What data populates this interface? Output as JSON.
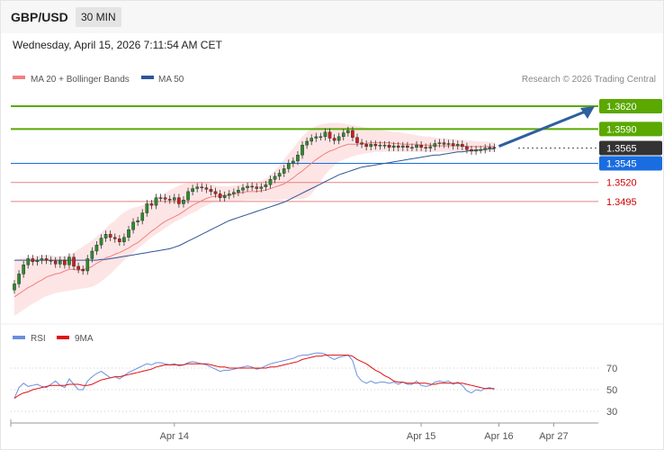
{
  "header": {
    "pair": "GBP/USD",
    "timeframe": "30 MIN"
  },
  "datetime": "Wednesday, April 15, 2026 7:11:54 AM CET",
  "credit": "Research © 2026 Trading Central",
  "colors": {
    "ma20": "#f08080",
    "ma50": "#2f5597",
    "band_fill": "#fde0e0",
    "resistance": "#5aa800",
    "support": "#1a6de0",
    "support_dark": "#d20000",
    "current": "#333333",
    "candle_up": "#2e8b2e",
    "candle_down": "#cc1f1f",
    "rsi": "#6a8fdc",
    "rsi_ma": "#e01010",
    "arrow": "#2e5f9e"
  },
  "chart_data": [
    {
      "type": "candlestick",
      "title": "",
      "legend": [
        "MA 20 + Bollinger Bands",
        "MA 50"
      ],
      "price_levels": [
        {
          "value": "1.3620",
          "role": "resistance"
        },
        {
          "value": "1.3590",
          "role": "resistance"
        },
        {
          "value": "1.3565",
          "role": "current"
        },
        {
          "value": "1.3545",
          "role": "support"
        },
        {
          "value": "1.3520",
          "role": "support"
        },
        {
          "value": "1.3495",
          "role": "support"
        }
      ],
      "ylim": [
        1.3345,
        1.364
      ],
      "x_ticks": [
        {
          "label": "Apr 14",
          "index": 35
        },
        {
          "label": "Apr 15",
          "index": 89
        },
        {
          "label": "Apr 16",
          "index": 106
        },
        {
          "label": "Apr 27",
          "index": 118
        }
      ],
      "n_slots": 124,
      "closes": [
        1.3387,
        1.34,
        1.3412,
        1.342,
        1.3416,
        1.3418,
        1.342,
        1.3418,
        1.3417,
        1.3413,
        1.3418,
        1.3412,
        1.3422,
        1.341,
        1.3406,
        1.3404,
        1.342,
        1.343,
        1.3438,
        1.3447,
        1.3452,
        1.3448,
        1.3446,
        1.3442,
        1.3448,
        1.3458,
        1.3468,
        1.347,
        1.348,
        1.3492,
        1.349,
        1.35,
        1.35,
        1.3498,
        1.3497,
        1.35,
        1.3492,
        1.3497,
        1.3508,
        1.3512,
        1.3514,
        1.3513,
        1.3511,
        1.3508,
        1.3505,
        1.35,
        1.3503,
        1.3505,
        1.3507,
        1.351,
        1.3513,
        1.3515,
        1.3514,
        1.3512,
        1.3514,
        1.3517,
        1.3524,
        1.3528,
        1.3532,
        1.3538,
        1.3545,
        1.3548,
        1.3556,
        1.3569,
        1.3574,
        1.3578,
        1.358,
        1.358,
        1.3586,
        1.3578,
        1.3575,
        1.358,
        1.3585,
        1.3588,
        1.3579,
        1.3572,
        1.357,
        1.3567,
        1.357,
        1.3568,
        1.3569,
        1.3569,
        1.3566,
        1.3568,
        1.3566,
        1.3568,
        1.3566,
        1.3566,
        1.3569,
        1.3566,
        1.3565,
        1.3567,
        1.3571,
        1.3572,
        1.357,
        1.3571,
        1.3568,
        1.357,
        1.3567,
        1.3563,
        1.3561,
        1.3563,
        1.3563,
        1.3565,
        1.3566,
        1.3565
      ],
      "ma20": [
        1.337,
        1.3374,
        1.3378,
        1.3382,
        1.3385,
        1.3389,
        1.3392,
        1.3396,
        1.3398,
        1.34,
        1.3401,
        1.3404,
        1.3406,
        1.3406,
        1.3405,
        1.3406,
        1.3407,
        1.341,
        1.3414,
        1.3417,
        1.3421,
        1.3423,
        1.3426,
        1.3428,
        1.3431,
        1.3434,
        1.3438,
        1.3441,
        1.3446,
        1.3451,
        1.3456,
        1.346,
        1.3465,
        1.3469,
        1.3472,
        1.3475,
        1.3478,
        1.3482,
        1.3486,
        1.349,
        1.3493,
        1.3496,
        1.3499,
        1.3501,
        1.3502,
        1.3502,
        1.3503,
        1.3503,
        1.3505,
        1.3506,
        1.3507,
        1.3508,
        1.3508,
        1.3508,
        1.3509,
        1.351,
        1.3512,
        1.3514,
        1.3516,
        1.3518,
        1.3522,
        1.3526,
        1.3531,
        1.3535,
        1.354,
        1.3545,
        1.355,
        1.3554,
        1.3558,
        1.3561,
        1.3563,
        1.3566,
        1.3568,
        1.357,
        1.357,
        1.357,
        1.3571,
        1.3571,
        1.3572,
        1.3572,
        1.3572,
        1.3572,
        1.3572,
        1.3571,
        1.3571,
        1.357,
        1.357,
        1.357,
        1.357,
        1.3569,
        1.3569,
        1.3569,
        1.3568,
        1.3568,
        1.3568,
        1.3568,
        1.3568,
        1.3568,
        1.3568,
        1.3567,
        1.3567,
        1.3567,
        1.3567,
        1.3567,
        1.3567,
        1.3567
      ],
      "bb_upper": [
        1.3418,
        1.342,
        1.3421,
        1.3422,
        1.3423,
        1.3424,
        1.3425,
        1.3425,
        1.3425,
        1.3423,
        1.3423,
        1.3424,
        1.3425,
        1.3428,
        1.3432,
        1.3436,
        1.344,
        1.3444,
        1.3449,
        1.3454,
        1.346,
        1.3466,
        1.347,
        1.3476,
        1.3481,
        1.3484,
        1.3487,
        1.3488,
        1.349,
        1.3493,
        1.3496,
        1.35,
        1.3503,
        1.3506,
        1.351,
        1.3513,
        1.3516,
        1.3518,
        1.3519,
        1.352,
        1.352,
        1.3521,
        1.352,
        1.3518,
        1.3516,
        1.3515,
        1.3515,
        1.3515,
        1.3516,
        1.3517,
        1.3518,
        1.3518,
        1.3519,
        1.352,
        1.3522,
        1.3525,
        1.353,
        1.3536,
        1.3542,
        1.355,
        1.3558,
        1.3565,
        1.3573,
        1.358,
        1.3586,
        1.3591,
        1.3594,
        1.3596,
        1.3597,
        1.3598,
        1.3598,
        1.3598,
        1.3597,
        1.3596,
        1.3595,
        1.3594,
        1.3593,
        1.3592,
        1.3591,
        1.359,
        1.3589,
        1.3588,
        1.3587,
        1.3586,
        1.3586,
        1.3585,
        1.3584,
        1.3583,
        1.3582,
        1.3581,
        1.358,
        1.358,
        1.3579,
        1.3578,
        1.3578,
        1.3577,
        1.3577,
        1.3576,
        1.3576,
        1.3575,
        1.3575,
        1.3574,
        1.3574,
        1.3574,
        1.3573,
        1.3573
      ],
      "bb_lower": [
        1.3345,
        1.3349,
        1.3353,
        1.3357,
        1.3361,
        1.3364,
        1.3368,
        1.3371,
        1.3373,
        1.3375,
        1.3376,
        1.3377,
        1.3378,
        1.3379,
        1.338,
        1.3381,
        1.3382,
        1.3383,
        1.3386,
        1.339,
        1.3395,
        1.34,
        1.3406,
        1.3412,
        1.3418,
        1.3423,
        1.3428,
        1.3433,
        1.3438,
        1.3443,
        1.3448,
        1.3452,
        1.3456,
        1.346,
        1.3464,
        1.3468,
        1.3471,
        1.3474,
        1.3477,
        1.348,
        1.3483,
        1.3487,
        1.349,
        1.3493,
        1.3495,
        1.3496,
        1.3496,
        1.3496,
        1.3496,
        1.3496,
        1.3496,
        1.3497,
        1.3497,
        1.3497,
        1.3497,
        1.3497,
        1.3497,
        1.3497,
        1.3497,
        1.3498,
        1.3498,
        1.3498,
        1.3498,
        1.3498,
        1.35,
        1.3505,
        1.3512,
        1.3521,
        1.353,
        1.3537,
        1.3542,
        1.3547,
        1.355,
        1.3552,
        1.3554,
        1.3556,
        1.3557,
        1.3558,
        1.3559,
        1.356,
        1.356,
        1.356,
        1.356,
        1.356,
        1.356,
        1.356,
        1.356,
        1.356,
        1.356,
        1.356,
        1.356,
        1.356,
        1.356,
        1.356,
        1.356,
        1.356,
        1.356,
        1.356,
        1.356,
        1.356,
        1.356,
        1.356,
        1.356,
        1.356,
        1.356,
        1.356
      ],
      "ma50": [
        1.3418,
        1.3418,
        1.3418,
        1.3418,
        1.3418,
        1.3418,
        1.3418,
        1.3418,
        1.3418,
        1.3418,
        1.3418,
        1.3418,
        1.3418,
        1.3418,
        1.3418,
        1.3418,
        1.3418,
        1.3418,
        1.3418,
        1.3419,
        1.3419,
        1.342,
        1.3421,
        1.3422,
        1.3423,
        1.3424,
        1.3425,
        1.3426,
        1.3427,
        1.3428,
        1.3429,
        1.343,
        1.3431,
        1.3432,
        1.3433,
        1.3435,
        1.3437,
        1.344,
        1.3443,
        1.3446,
        1.3449,
        1.3452,
        1.3455,
        1.3458,
        1.3461,
        1.3464,
        1.3467,
        1.347,
        1.3472,
        1.3474,
        1.3476,
        1.3478,
        1.348,
        1.3482,
        1.3484,
        1.3486,
        1.3488,
        1.349,
        1.3492,
        1.3494,
        1.3497,
        1.35,
        1.3503,
        1.3506,
        1.3509,
        1.3512,
        1.3515,
        1.3518,
        1.3521,
        1.3524,
        1.3527,
        1.353,
        1.3532,
        1.3534,
        1.3536,
        1.3538,
        1.354,
        1.3541,
        1.3542,
        1.3543,
        1.3544,
        1.3545,
        1.3546,
        1.3547,
        1.3548,
        1.3549,
        1.355,
        1.3551,
        1.3552,
        1.3553,
        1.3554,
        1.3555,
        1.3556,
        1.3556,
        1.3557,
        1.3558,
        1.3559,
        1.356,
        1.356,
        1.3561,
        1.3562,
        1.3562,
        1.3563,
        1.3563,
        1.3564,
        1.3564
      ],
      "arrow_target": 1.362
    },
    {
      "type": "line",
      "title": "",
      "legend": [
        "RSI",
        "9MA"
      ],
      "y_ticks": [
        70,
        50,
        30
      ],
      "ylim": [
        24,
        89
      ],
      "series": [
        {
          "name": "RSI",
          "values": [
            42,
            52,
            56,
            53,
            54,
            55,
            53,
            52,
            55,
            58,
            54,
            52,
            60,
            55,
            50,
            50,
            58,
            62,
            65,
            67,
            64,
            61,
            62,
            60,
            63,
            66,
            68,
            70,
            72,
            74,
            73,
            75,
            75,
            74,
            73,
            74,
            72,
            73,
            75,
            76,
            75,
            74,
            73,
            71,
            69,
            67,
            68,
            68,
            69,
            70,
            71,
            72,
            71,
            69,
            70,
            72,
            74,
            75,
            76,
            77,
            78,
            79,
            81,
            82,
            82,
            83,
            84,
            84,
            83,
            80,
            78,
            80,
            81,
            82,
            77,
            63,
            58,
            56,
            58,
            56,
            57,
            57,
            56,
            57,
            55,
            57,
            55,
            55,
            58,
            54,
            53,
            54,
            57,
            58,
            57,
            58,
            55,
            57,
            54,
            49,
            47,
            50,
            49,
            51,
            52,
            50
          ]
        },
        {
          "name": "9MA",
          "values": [
            42,
            45,
            47,
            48,
            50,
            51,
            52,
            53,
            54,
            54,
            54,
            54,
            55,
            55,
            55,
            54,
            54,
            55,
            57,
            59,
            60,
            61,
            62,
            62,
            63,
            64,
            65,
            66,
            67,
            68,
            69,
            71,
            72,
            73,
            73,
            73,
            73,
            73,
            74,
            74,
            74,
            74,
            74,
            73,
            72,
            71,
            71,
            70,
            70,
            70,
            70,
            70,
            70,
            70,
            70,
            70,
            71,
            71,
            72,
            73,
            74,
            75,
            76,
            78,
            79,
            80,
            81,
            81,
            82,
            82,
            82,
            82,
            82,
            82,
            81,
            78,
            76,
            74,
            71,
            68,
            66,
            63,
            61,
            58,
            57,
            57,
            56,
            56,
            56,
            56,
            56,
            55,
            55,
            56,
            56,
            56,
            56,
            56,
            56,
            55,
            54,
            53,
            52,
            51,
            51,
            51
          ]
        }
      ]
    }
  ]
}
